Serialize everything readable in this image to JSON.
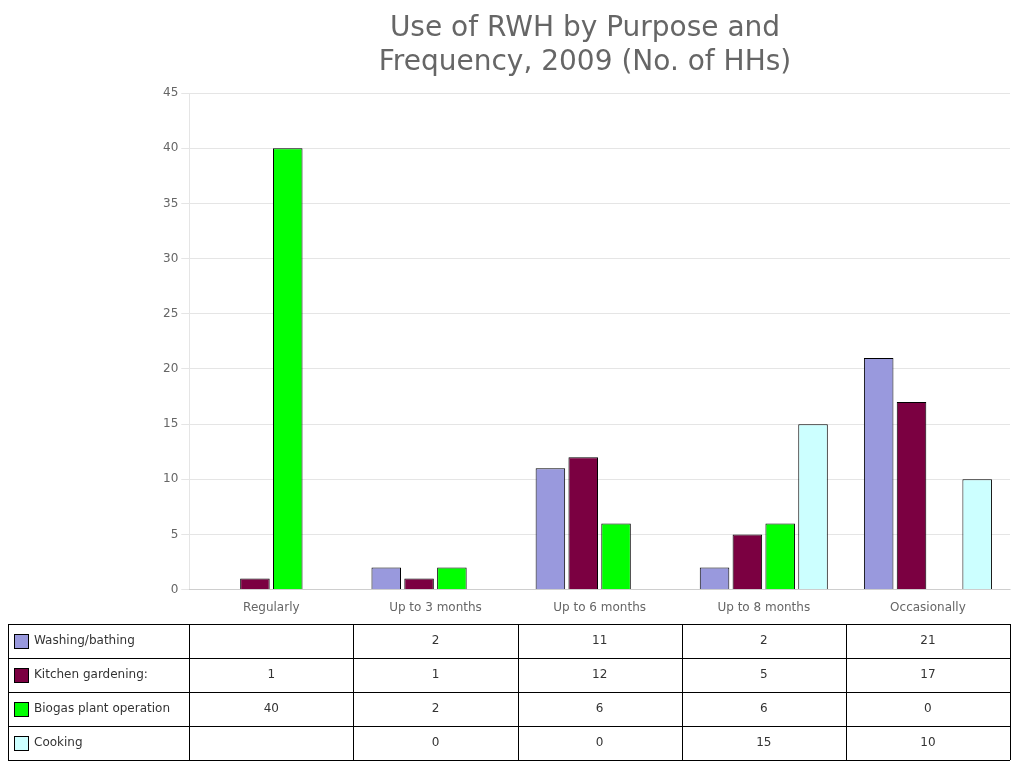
{
  "chart_data": {
    "type": "bar",
    "title": [
      "Use of RWH by Purpose and",
      "Frequency, 2009 (No. of HHs)"
    ],
    "categories": [
      "Regularly",
      "Up to 3 months",
      "Up to 6 months",
      "Up to 8 months",
      "Occasionally"
    ],
    "series": [
      {
        "name": "Washing/bathing",
        "color": "#9999DD",
        "values": [
          0,
          2,
          11,
          2,
          21
        ],
        "value_labels": [
          null,
          "2",
          "11",
          "2",
          "21"
        ]
      },
      {
        "name": "Kitchen gardening:",
        "color": "#7B0041",
        "values": [
          1,
          1,
          12,
          5,
          17
        ],
        "value_labels": [
          "1",
          "1",
          "12",
          "5",
          "17"
        ]
      },
      {
        "name": "Biogas plant operation",
        "color": "#00FF00",
        "values": [
          40,
          2,
          6,
          6,
          0
        ],
        "value_labels": [
          "40",
          "2",
          "6",
          "6",
          "0"
        ]
      },
      {
        "name": "Cooking",
        "color": "#CCFFFF",
        "values": [
          0,
          0,
          0,
          15,
          10
        ],
        "value_labels": [
          null,
          "0",
          "0",
          "15",
          "10"
        ]
      }
    ],
    "ylim": [
      0,
      45
    ],
    "yticks": [
      0,
      5,
      10,
      15,
      20,
      25,
      30,
      35,
      40,
      45
    ],
    "grid": true
  }
}
